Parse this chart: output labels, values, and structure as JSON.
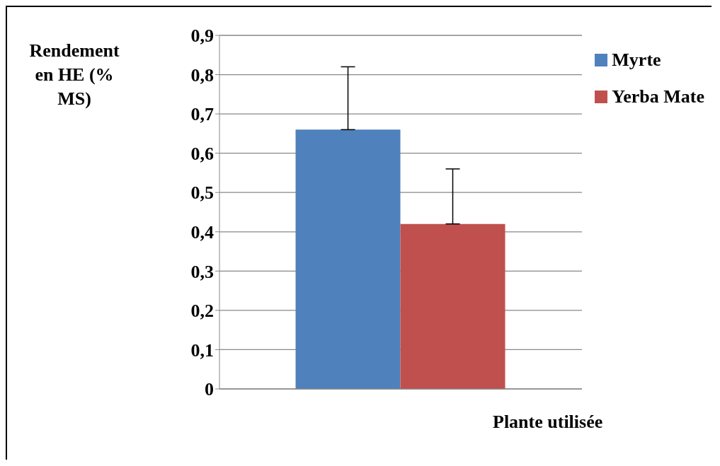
{
  "chart_data": {
    "type": "bar",
    "ylabel": "Rendement en HE (% MS)",
    "xlabel": "Plante utilisée",
    "categories": [
      null
    ],
    "series": [
      {
        "name": "Myrte",
        "color": "#4f81bd",
        "values": [
          0.66
        ],
        "errors": [
          [
            0.66,
            0.82
          ]
        ]
      },
      {
        "name": "Yerba Mate",
        "color": "#c0504d",
        "values": [
          0.42
        ],
        "errors": [
          [
            0.42,
            0.56
          ]
        ]
      }
    ],
    "ylim": [
      0,
      0.9
    ],
    "yticks": [
      {
        "value": 0,
        "label": "0"
      },
      {
        "value": 0.1,
        "label": "0,1"
      },
      {
        "value": 0.2,
        "label": "0,2"
      },
      {
        "value": 0.3,
        "label": "0,3"
      },
      {
        "value": 0.4,
        "label": "0,4"
      },
      {
        "value": 0.5,
        "label": "0,5"
      },
      {
        "value": 0.6,
        "label": "0,6"
      },
      {
        "value": 0.7,
        "label": "0,7"
      },
      {
        "value": 0.8,
        "label": "0,8"
      },
      {
        "value": 0.9,
        "label": "0,9"
      }
    ],
    "grid": "y",
    "legend": "right"
  }
}
